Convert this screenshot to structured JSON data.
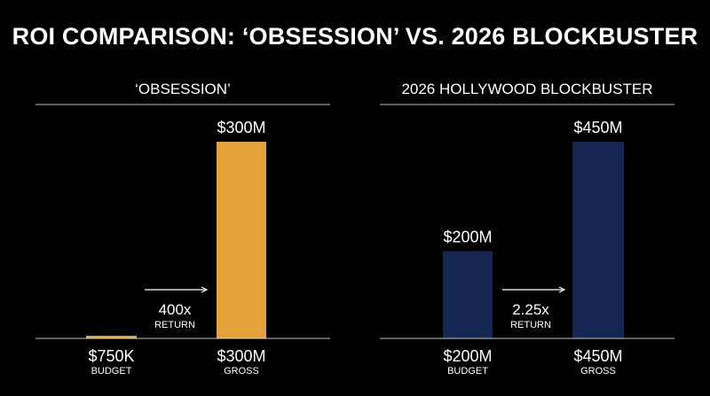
{
  "title": "ROI COMPARISON: ‘OBSESSION’ VS. 2026 BLOCKBUSTER",
  "colors": {
    "background": "#000000",
    "obsession_bar": "#E3A23A",
    "blockbuster_bar": "#162653",
    "text": "#FFFFFF"
  },
  "chart_data": [
    {
      "type": "bar",
      "title": "‘OBSESSION’",
      "categories": [
        "BUDGET",
        "GROSS"
      ],
      "category_values": [
        "$750K",
        "$300M"
      ],
      "values": [
        0.75,
        300
      ],
      "value_labels": [
        "",
        "$300M"
      ],
      "unit": "$M",
      "color": "#E3A23A",
      "multiplier": "400x",
      "multiplier_caption": "RETURN",
      "ylim": [
        0,
        300
      ],
      "grid": false
    },
    {
      "type": "bar",
      "title": "2026 HOLLYWOOD BLOCKBUSTER",
      "categories": [
        "BUDGET",
        "GROSS"
      ],
      "category_values": [
        "$200M",
        "$450M"
      ],
      "values": [
        200,
        450
      ],
      "value_labels": [
        "$200M",
        "$450M"
      ],
      "unit": "$M",
      "color": "#162653",
      "multiplier": "2.25x",
      "multiplier_caption": "RETURN",
      "ylim": [
        0,
        450
      ],
      "grid": false
    }
  ]
}
